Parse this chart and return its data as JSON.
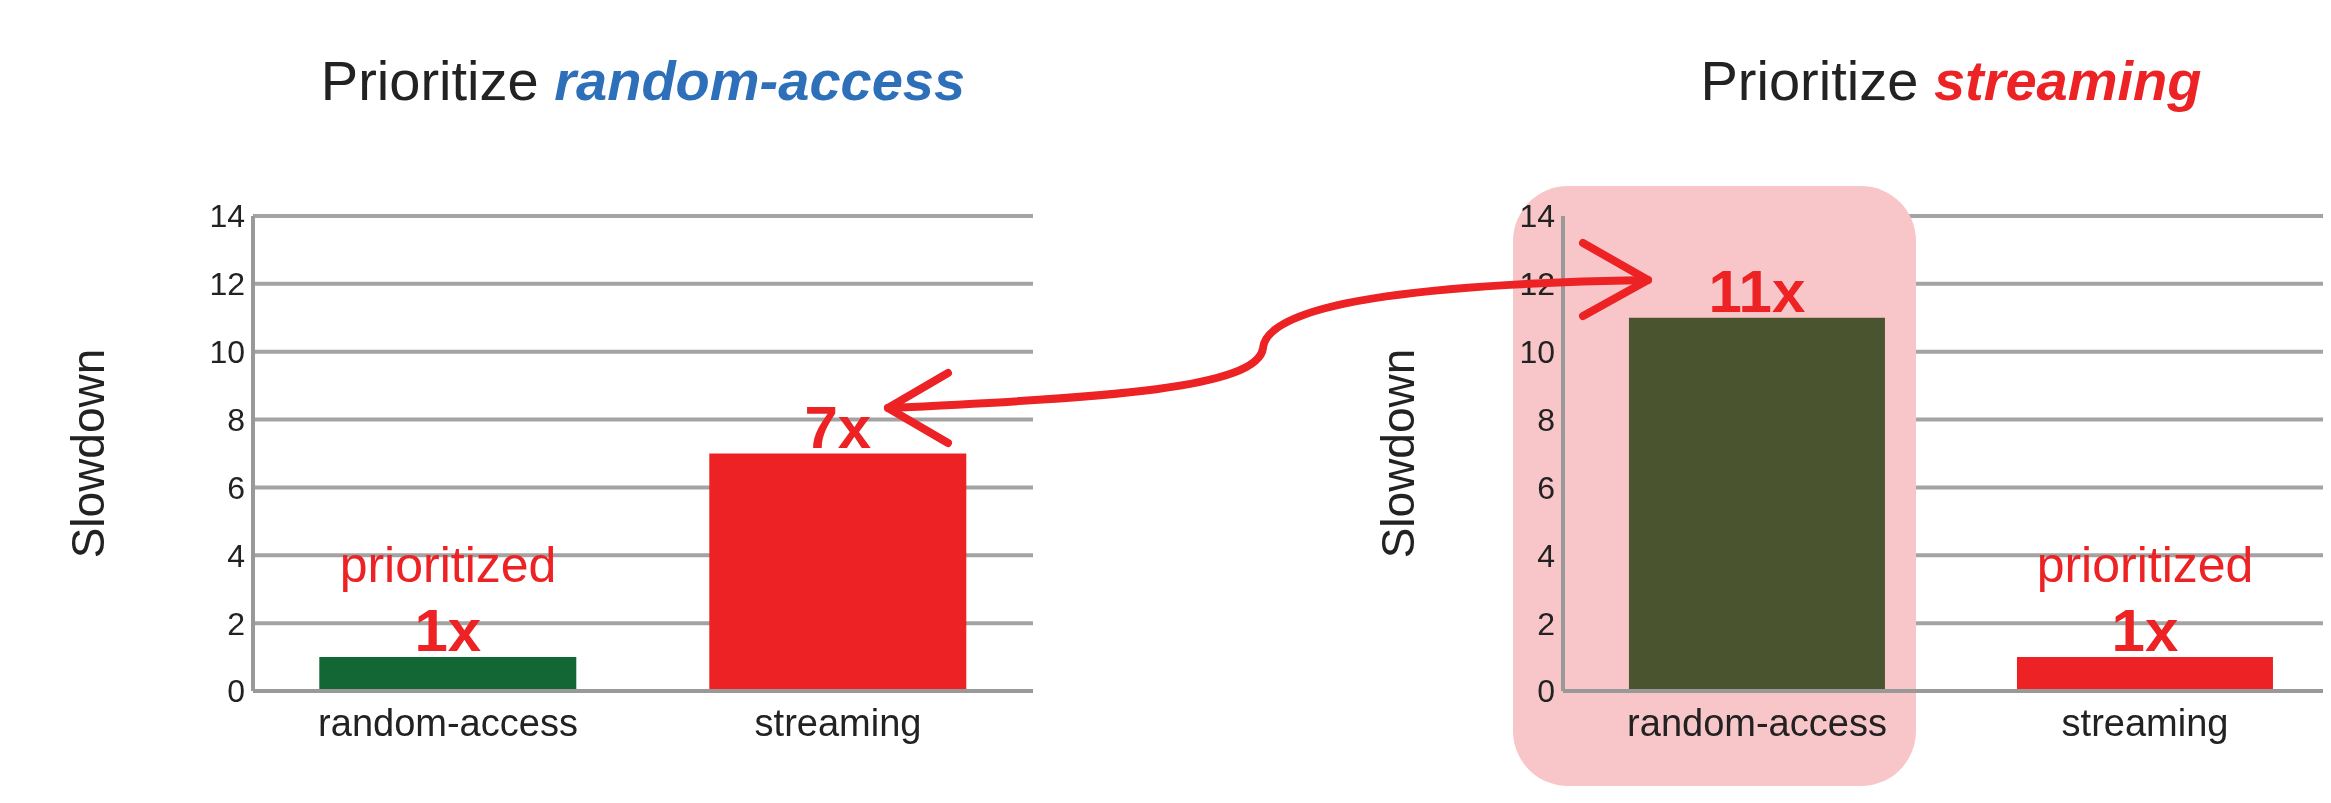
{
  "chart_data": [
    {
      "type": "bar",
      "title": "Prioritize random-access",
      "ylabel": "Slowdown",
      "categories": [
        "random-access",
        "streaming"
      ],
      "values": [
        1,
        7
      ],
      "colors": [
        "#136734",
        "#ed2224"
      ],
      "value_labels": [
        "1x",
        "7x"
      ],
      "ylim": [
        0,
        14
      ],
      "yticks": [
        0,
        2,
        4,
        6,
        8,
        10,
        12,
        14
      ],
      "grid": "y",
      "annotations": [
        {
          "text": "prioritized",
          "x": "random-access",
          "y": 1
        }
      ]
    },
    {
      "type": "bar",
      "title": "Prioritize streaming",
      "ylabel": "Slowdown",
      "categories": [
        "random-access",
        "streaming"
      ],
      "values": [
        11,
        1
      ],
      "colors": [
        "#4a5530",
        "#ed2224"
      ],
      "value_labels": [
        "11x",
        "1x"
      ],
      "ylim": [
        0,
        14
      ],
      "yticks": [
        0,
        2,
        4,
        6,
        8,
        10,
        12,
        14
      ],
      "grid": "y",
      "annotations": [
        {
          "text": "prioritized",
          "x": "streaming",
          "y": 1
        }
      ],
      "bands": [
        {
          "axis": "x",
          "from": "random-access",
          "to": "random-access",
          "color": "#f8c6c8"
        }
      ]
    }
  ]
}
